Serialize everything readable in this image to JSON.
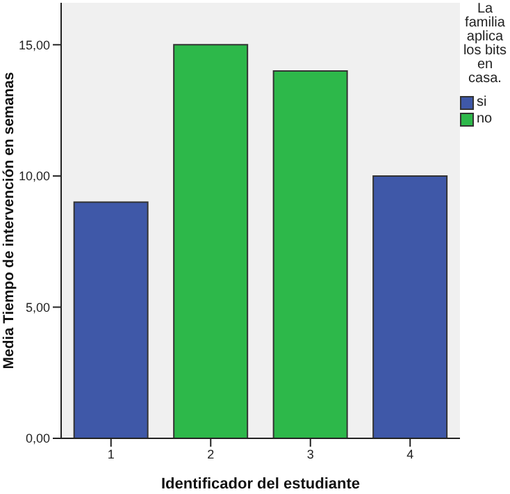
{
  "chart_data": {
    "type": "bar",
    "xlabel": "Identificador del estudiante",
    "ylabel": "Media Tiempo de intervención en semanas",
    "legend_title": "La familia aplica los bits en casa.",
    "categories": [
      "1",
      "2",
      "3",
      "4"
    ],
    "series": [
      {
        "name": "si",
        "color": "#3f58a8",
        "values": [
          9,
          null,
          null,
          10
        ]
      },
      {
        "name": "no",
        "color": "#2db84a",
        "values": [
          null,
          15,
          14,
          null
        ]
      }
    ],
    "stacked": true,
    "ylim": [
      0,
      16.6
    ],
    "yticks": [
      {
        "value": 0,
        "label": "0,00"
      },
      {
        "value": 5,
        "label": "5,00"
      },
      {
        "value": 10,
        "label": "10,00"
      },
      {
        "value": 15,
        "label": "15,00"
      }
    ],
    "grid": false,
    "legend": "right"
  }
}
